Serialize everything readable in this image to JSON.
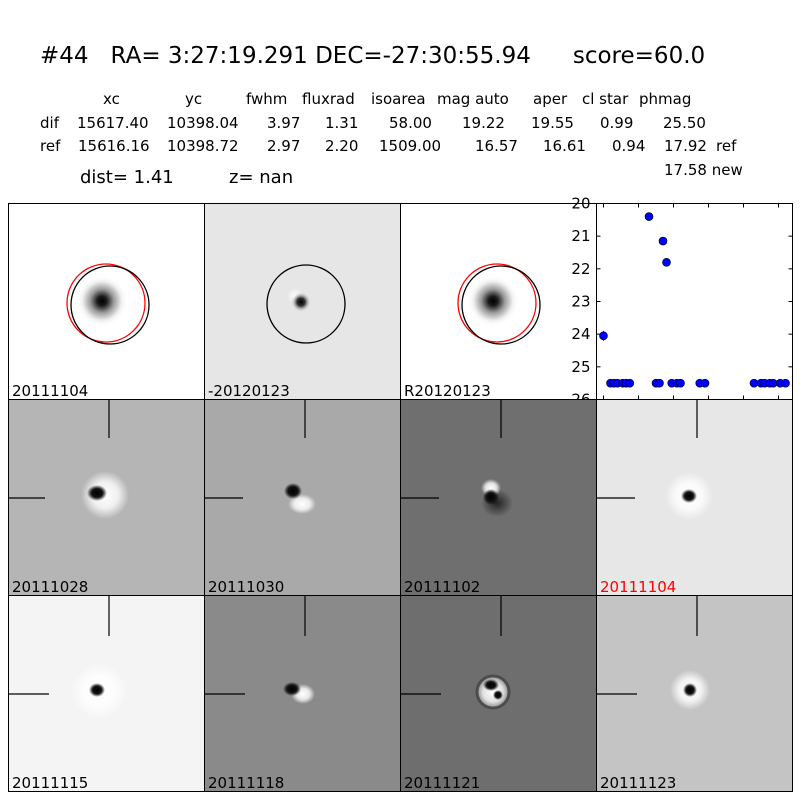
{
  "header": {
    "obj_id": "#44",
    "coords": "RA= 3:27:19.291 DEC=-27:30:55.94",
    "score": "score=60.0"
  },
  "table": {
    "columns": [
      "xc",
      "yc",
      "fwhm",
      "fluxrad",
      "isoarea",
      "mag auto",
      "aper",
      "cl star",
      "phmag"
    ],
    "rows": [
      {
        "label": "dif",
        "values": [
          "15617.40",
          "10398.04",
          "3.97",
          "1.31",
          "58.00",
          "19.22",
          "19.55",
          "0.99",
          "25.50"
        ],
        "suffix": ""
      },
      {
        "label": "ref",
        "values": [
          "15616.16",
          "10398.72",
          "2.97",
          "2.20",
          "1509.00",
          "16.57",
          "16.61",
          "0.94",
          "17.92"
        ],
        "suffix": "ref"
      }
    ],
    "new_phmag": "17.58 new"
  },
  "dist_text": "dist=  1.41",
  "z_text": "z=   nan",
  "tiles": [
    {
      "label": "20111104",
      "type": "ref-image",
      "label_color": "#000000",
      "bg": "#ffffff"
    },
    {
      "label": "-20120123",
      "type": "diff-image",
      "label_color": "#000000",
      "bg": "#e6e6e6"
    },
    {
      "label": "R20120123",
      "type": "ref-image",
      "label_color": "#000000",
      "bg": "#ffffff"
    },
    {
      "label": "20111028",
      "type": "cutout",
      "label_color": "#000000",
      "bg": "#b5b5b5"
    },
    {
      "label": "20111030",
      "type": "cutout",
      "label_color": "#000000",
      "bg": "#a9a9a9"
    },
    {
      "label": "20111102",
      "type": "cutout",
      "label_color": "#000000",
      "bg": "#6f6f6f"
    },
    {
      "label": "20111104",
      "type": "cutout",
      "label_color": "#ff0000",
      "bg": "#e7e7e7"
    },
    {
      "label": "20111115",
      "type": "cutout",
      "label_color": "#000000",
      "bg": "#f4f4f4"
    },
    {
      "label": "20111118",
      "type": "cutout",
      "label_color": "#000000",
      "bg": "#8a8a8a"
    },
    {
      "label": "20111121",
      "type": "cutout",
      "label_color": "#000000",
      "bg": "#6e6e6e"
    },
    {
      "label": "20111123",
      "type": "cutout",
      "label_color": "#000000",
      "bg": "#c4c4c4"
    }
  ],
  "chart_data": {
    "type": "scatter",
    "xlim": [
      -4,
      108
    ],
    "ylim": [
      20,
      26
    ],
    "y_inverted": true,
    "xticks": [
      0,
      20,
      40,
      60,
      80,
      100
    ],
    "yticks": [
      20,
      21,
      22,
      23,
      24,
      25,
      26
    ],
    "grid": false,
    "marker_color": "#0000ff",
    "points": [
      {
        "x": 0,
        "y": 24.05,
        "err": 0.15
      },
      {
        "x": 4,
        "y": 25.5
      },
      {
        "x": 6,
        "y": 25.5
      },
      {
        "x": 8,
        "y": 25.5
      },
      {
        "x": 11,
        "y": 25.5
      },
      {
        "x": 13,
        "y": 25.5
      },
      {
        "x": 15,
        "y": 25.5
      },
      {
        "x": 26,
        "y": 20.4
      },
      {
        "x": 30,
        "y": 25.5
      },
      {
        "x": 32,
        "y": 25.5
      },
      {
        "x": 34,
        "y": 21.15
      },
      {
        "x": 36,
        "y": 21.8
      },
      {
        "x": 39,
        "y": 25.5
      },
      {
        "x": 42,
        "y": 25.5
      },
      {
        "x": 44,
        "y": 25.5
      },
      {
        "x": 55,
        "y": 25.5
      },
      {
        "x": 58,
        "y": 25.5
      },
      {
        "x": 86,
        "y": 25.5
      },
      {
        "x": 90,
        "y": 25.5
      },
      {
        "x": 92,
        "y": 25.5
      },
      {
        "x": 95,
        "y": 25.5
      },
      {
        "x": 97,
        "y": 25.5
      },
      {
        "x": 101,
        "y": 25.5
      },
      {
        "x": 104,
        "y": 25.5
      }
    ]
  }
}
